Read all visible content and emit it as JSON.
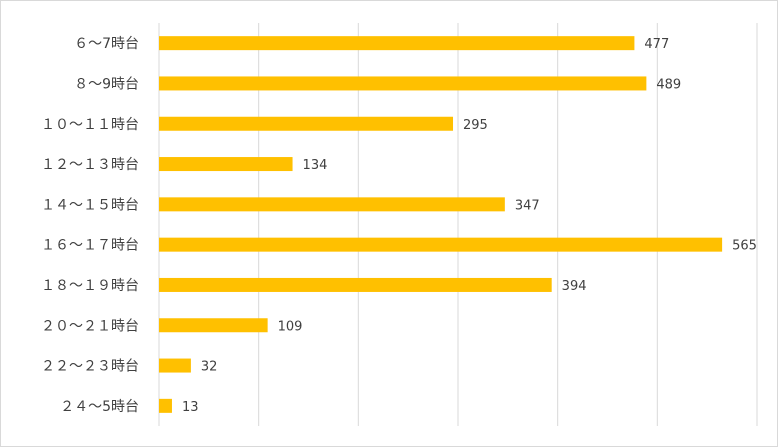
{
  "chart_data": {
    "type": "bar",
    "orientation": "horizontal",
    "categories": [
      "６～7時台",
      "８～9時台",
      "１０～１１時台",
      "１２～１３時台",
      "１４～１５時台",
      "１６～１７時台",
      "１８～１９時台",
      "２０～２１時台",
      "２２～２３時台",
      "２４～5時台"
    ],
    "values": [
      477,
      489,
      295,
      134,
      347,
      565,
      394,
      109,
      32,
      13
    ],
    "title": "",
    "xlabel": "",
    "ylabel": "",
    "xlim": [
      0,
      600
    ],
    "grid": true,
    "legend": "none",
    "bar_color": "#FFC000"
  }
}
